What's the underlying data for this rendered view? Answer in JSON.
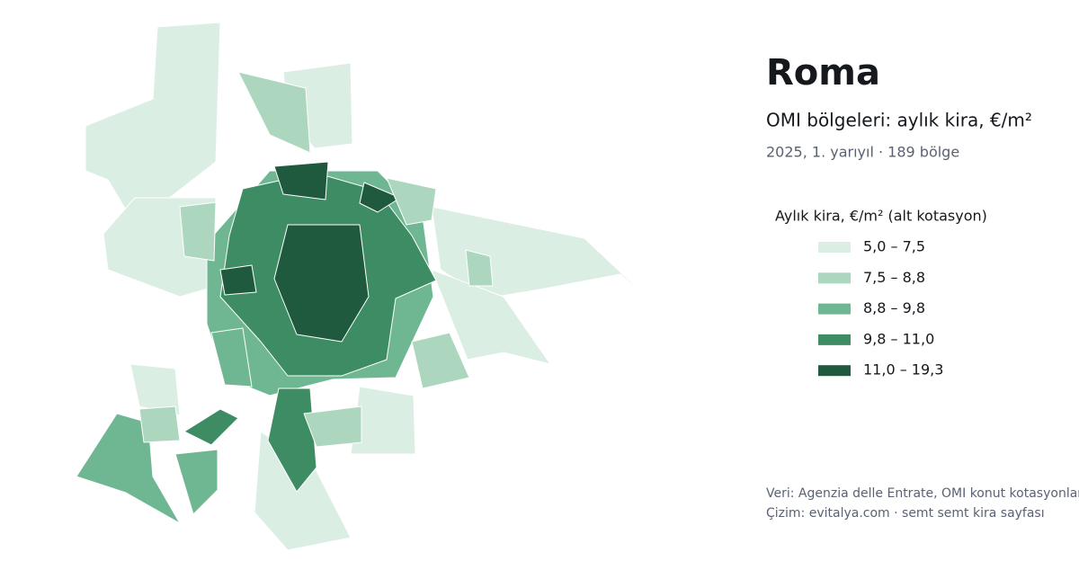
{
  "header": {
    "title": "Roma",
    "subtitle": "OMI bölgeleri: aylık kira, €/m²",
    "period": "2025, 1. yarıyıl · 189 bölge"
  },
  "legend": {
    "title": "Aylık kira, €/m² (alt kotasyon)",
    "items": [
      {
        "label": "5,0 – 7,5",
        "color": "#dbeee3"
      },
      {
        "label": "7,5 – 8,8",
        "color": "#acd6bd"
      },
      {
        "label": "8,8 – 9,8",
        "color": "#6fb792"
      },
      {
        "label": "9,8 – 11,0",
        "color": "#3d8c63"
      },
      {
        "label": "11,0 – 19,3",
        "color": "#1f5a3f"
      }
    ]
  },
  "footer": {
    "source": "Veri: Agenzia delle Entrate, OMI konut kotasyonları",
    "credit": "Çizim: evitalya.com · semt semt kira sayfası"
  }
}
